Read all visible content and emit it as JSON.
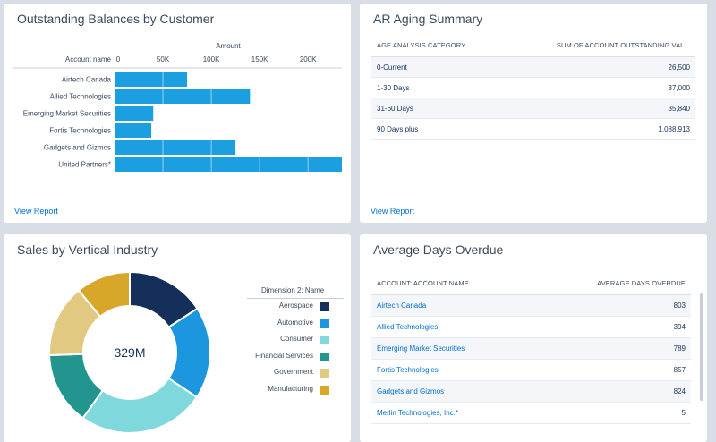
{
  "colors": {
    "bar": "#1b9fe0",
    "link": "#0070d2",
    "donut": [
      "#152f5b",
      "#1b96df",
      "#7fd9dc",
      "#21958e",
      "#e2c981",
      "#d8a72a"
    ]
  },
  "balances": {
    "title": "Outstanding Balances by Customer",
    "view_report": "View Report",
    "chart_data": {
      "type": "bar",
      "orientation": "horizontal",
      "title": "Outstanding Balances by Customer",
      "xlabel": "Amount",
      "ylabel": "Account name",
      "categories": [
        "Airtech Canada",
        "Allied Technologies",
        "Emerging Market Securities",
        "Fortis Technologies",
        "Gadgets and Gizmos",
        "United Partners*"
      ],
      "values": [
        75000,
        140000,
        40000,
        38000,
        125000,
        235000
      ],
      "ticks": [
        "0",
        "50K",
        "100K",
        "150K",
        "200K"
      ],
      "tick_values": [
        0,
        50000,
        100000,
        150000,
        200000
      ],
      "xlim": [
        0,
        235000
      ],
      "grid": true
    }
  },
  "aging": {
    "title": "AR Aging Summary",
    "view_report": "View Report",
    "col1": "AGE ANALYSIS CATEGORY",
    "col2": "SUM OF ACCOUNT OUTSTANDING VAL...",
    "rows": [
      {
        "category": "0-Current",
        "value": "26,500"
      },
      {
        "category": "1-30 Days",
        "value": "37,000"
      },
      {
        "category": "31-60 Days",
        "value": "35,840"
      },
      {
        "category": "90 Days plus",
        "value": "1,088,913"
      }
    ]
  },
  "sales": {
    "title": "Sales by Vertical Industry",
    "center_label": "329M",
    "legend_title": "Dimension 2: Name",
    "chart_data": {
      "type": "pie",
      "variant": "donut",
      "title": "Sales by Vertical Industry",
      "center_total": "329M",
      "legend_title": "Dimension 2: Name",
      "legend_position": "right",
      "categories": [
        "Aerospace",
        "Automotive",
        "Consumer",
        "Financial Services",
        "Government",
        "Manufacturing"
      ],
      "values": [
        52,
        61,
        84,
        48,
        48,
        36
      ]
    }
  },
  "overdue": {
    "title": "Average Days Overdue",
    "col1": "ACCOUNT: ACCOUNT NAME",
    "col2": "AVERAGE DAYS OVERDUE",
    "rows": [
      {
        "name": "Airtech Canada",
        "value": "803"
      },
      {
        "name": "Allied Technologies",
        "value": "394"
      },
      {
        "name": "Emerging Market Securities",
        "value": "789"
      },
      {
        "name": "Fortis Technologies",
        "value": "857"
      },
      {
        "name": "Gadgets and Gizmos",
        "value": "824"
      },
      {
        "name": "Merlin Technologies, Inc.*",
        "value": "5"
      }
    ]
  }
}
